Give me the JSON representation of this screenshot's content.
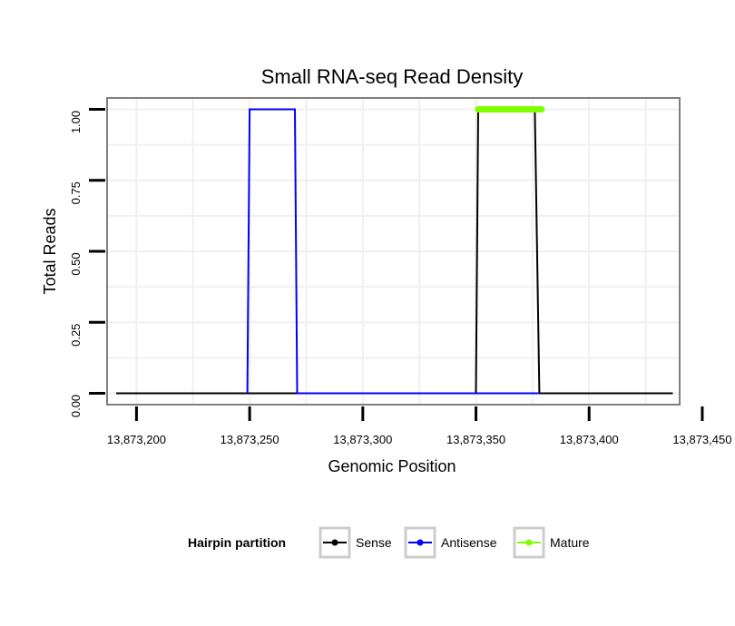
{
  "chart_data": {
    "type": "line",
    "title": "Small RNA-seq Read Density",
    "xlabel": "Genomic Position",
    "ylabel": "Total Reads",
    "xlim": [
      13873187,
      13873440
    ],
    "ylim": [
      -0.04,
      1.04
    ],
    "x_ticks": [
      {
        "value": 13873200,
        "label": "13,873,200"
      },
      {
        "value": 13873250,
        "label": "13,873,250"
      },
      {
        "value": 13873300,
        "label": "13,873,300"
      },
      {
        "value": 13873350,
        "label": "13,873,350"
      },
      {
        "value": 13873400,
        "label": "13,873,400"
      },
      {
        "value": 13873450,
        "label": "13,873,450"
      }
    ],
    "y_ticks": [
      {
        "value": 0,
        "label": "0.00"
      },
      {
        "value": 0.25,
        "label": "0.25"
      },
      {
        "value": 0.5,
        "label": "0.50"
      },
      {
        "value": 0.75,
        "label": "0.75"
      },
      {
        "value": 1.0,
        "label": "1.00"
      }
    ],
    "grid": true,
    "series": [
      {
        "name": "Sense",
        "color": "#000000",
        "x": [
          13873191,
          13873350,
          13873351,
          13873376,
          13873378,
          13873437
        ],
        "y": [
          0,
          0,
          1,
          1,
          0,
          0
        ]
      },
      {
        "name": "Antisense",
        "color": "#0000ff",
        "x": [
          13873249,
          13873250,
          13873270,
          13873271,
          13873378
        ],
        "y": [
          0,
          1,
          1,
          0,
          0
        ]
      },
      {
        "name": "Mature",
        "color": "#7fff00",
        "x": [
          13873351,
          13873379
        ],
        "y": [
          1,
          1
        ]
      }
    ],
    "legend": {
      "title": "Hairpin partition",
      "position": "bottom",
      "entries": [
        {
          "label": "Sense",
          "color": "#000000"
        },
        {
          "label": "Antisense",
          "color": "#0000ff"
        },
        {
          "label": "Mature",
          "color": "#7fff00"
        }
      ]
    }
  }
}
